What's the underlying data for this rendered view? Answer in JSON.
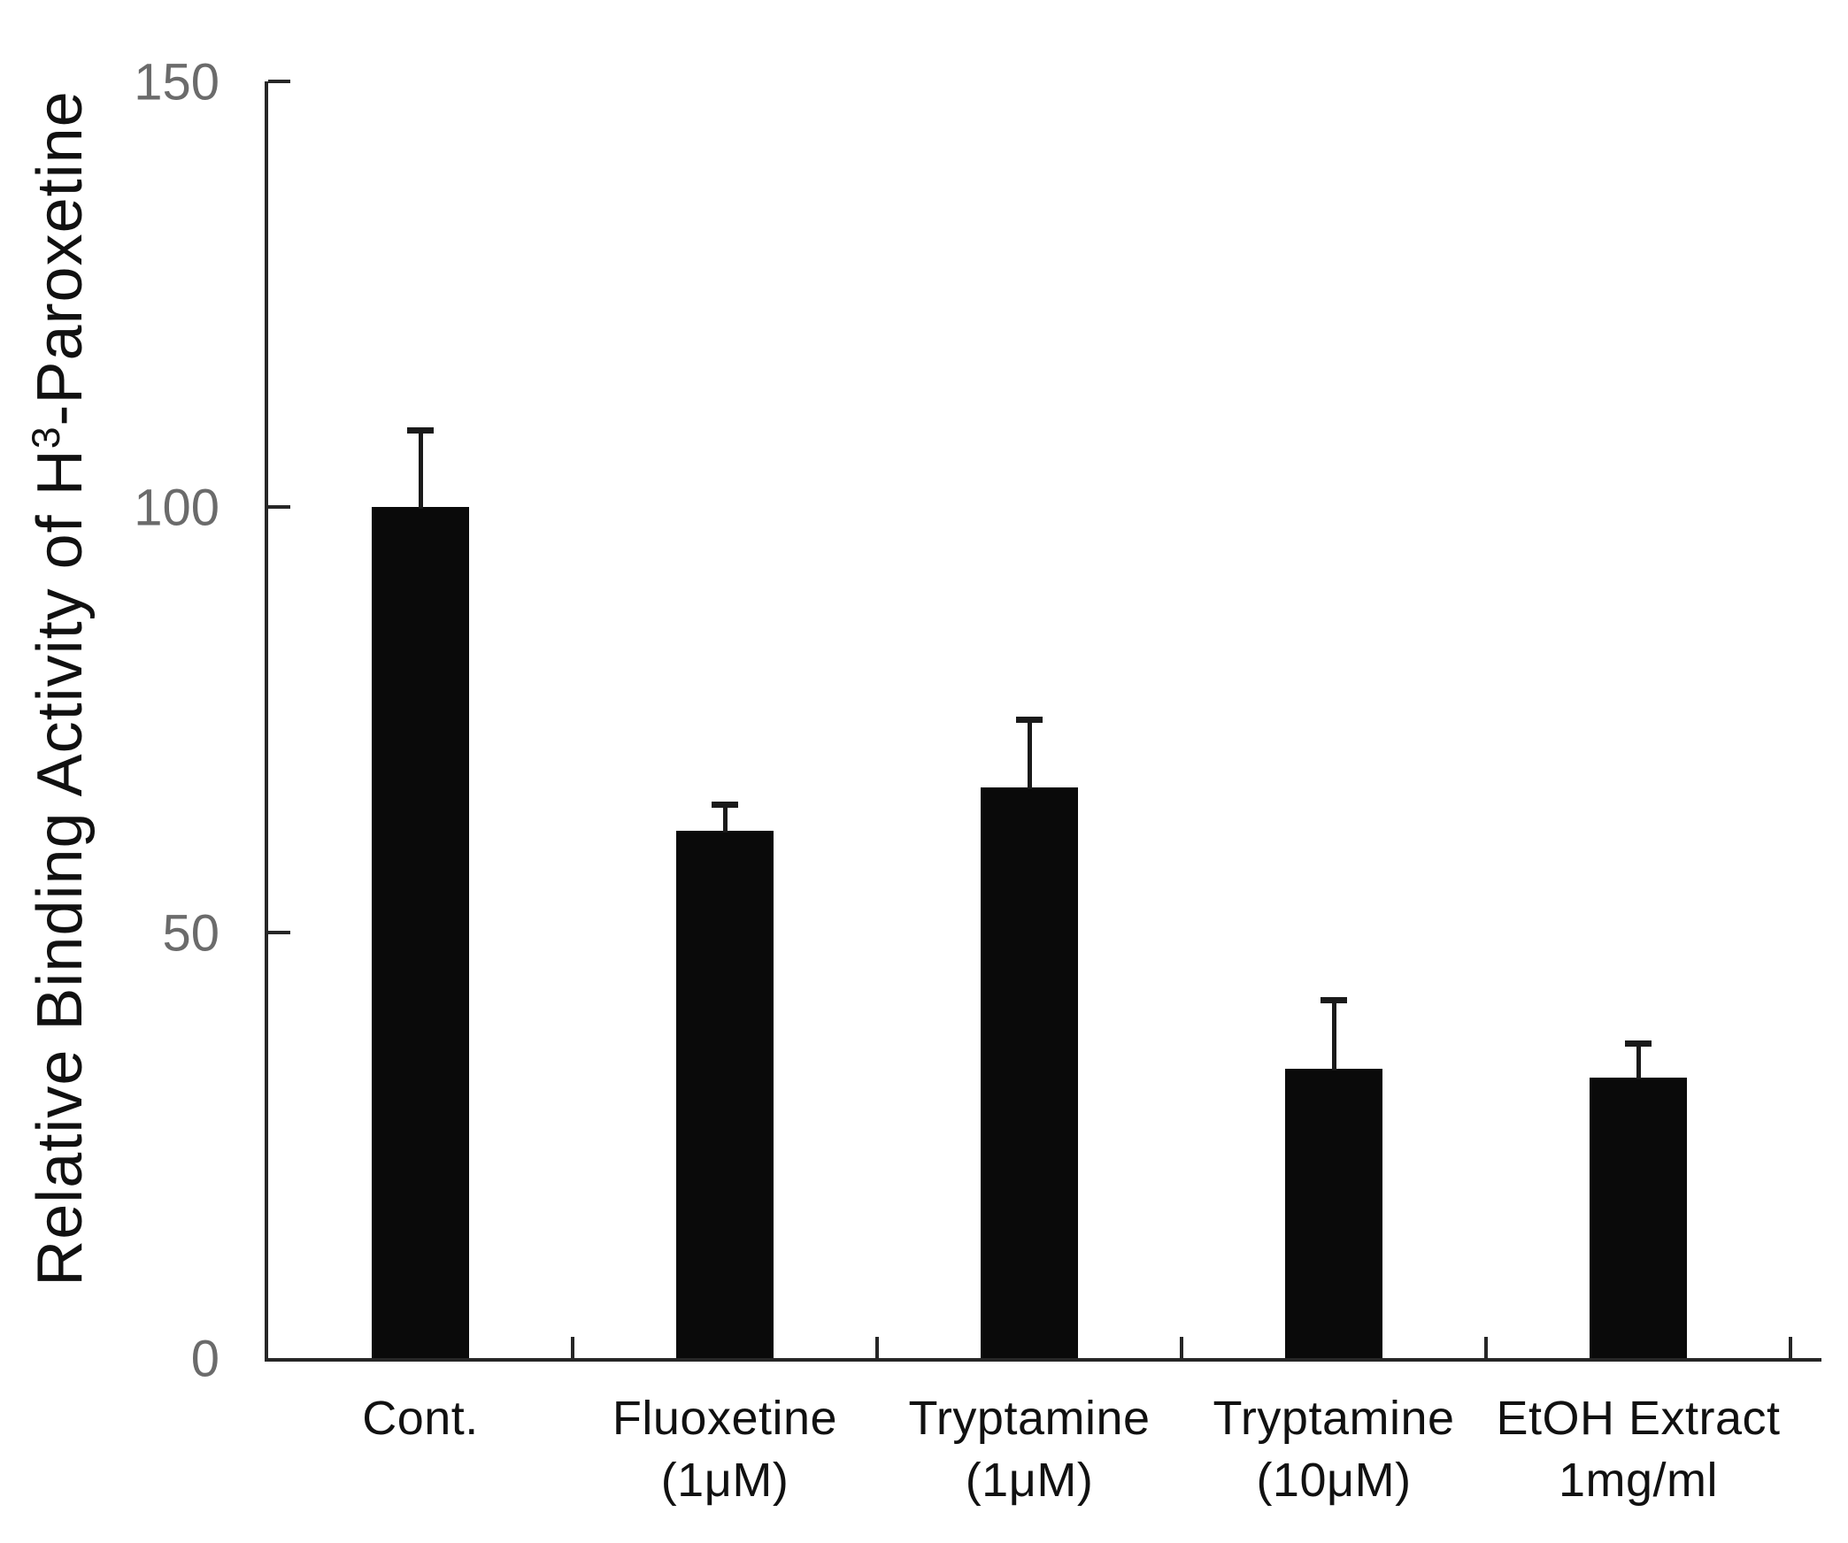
{
  "chart_data": {
    "type": "bar",
    "title": "",
    "xlabel": "",
    "ylabel": "Relative Binding Activity of H³-Paroxetine",
    "ylabel_parts": {
      "pre": "Relative Binding Activity of H",
      "sup": "3",
      "post": "-Paroxetine"
    },
    "categories": [
      "Cont.",
      "Fluoxetine (1μM)",
      "Tryptamine (1μM)",
      "Tryptamine (10μM)",
      "EtOH Extract 1mg/ml"
    ],
    "category_lines": [
      [
        "Cont."
      ],
      [
        "Fluoxetine",
        "(1μM)"
      ],
      [
        "Tryptamine",
        "(1μM)"
      ],
      [
        "Tryptamine",
        "(10μM)"
      ],
      [
        "EtOH Extract",
        "1mg/ml"
      ]
    ],
    "values": [
      100,
      62,
      67,
      34,
      33
    ],
    "errors": [
      9,
      3,
      8,
      8,
      4
    ],
    "error_direction": "upper",
    "yticks": [
      0,
      50,
      100,
      150
    ],
    "ylim": [
      0,
      150
    ],
    "grid": false,
    "legend": false,
    "bar_color": "#0a0a0a",
    "axis_color": "#262626",
    "error_bar_color": "#1a1a1a",
    "tick_label_color": "#6b6b6b",
    "category_label_color": "#111111",
    "background_color": "#ffffff"
  }
}
